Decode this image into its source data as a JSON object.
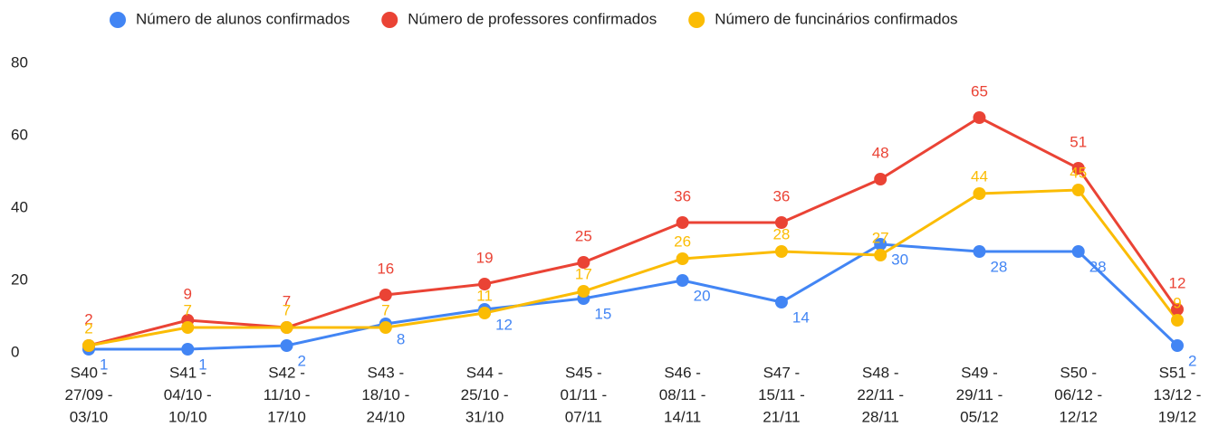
{
  "chart_data": {
    "type": "line",
    "categories": [
      [
        "S40 -",
        "27/09 -",
        "03/10"
      ],
      [
        "S41 -",
        "04/10 -",
        "10/10"
      ],
      [
        "S42 -",
        "11/10 -",
        "17/10"
      ],
      [
        "S43 -",
        "18/10 -",
        "24/10"
      ],
      [
        "S44 -",
        "25/10 -",
        "31/10"
      ],
      [
        "S45 -",
        "01/11 -",
        "07/11"
      ],
      [
        "S46 -",
        "08/11 -",
        "14/11"
      ],
      [
        "S47 -",
        "15/11 -",
        "21/11"
      ],
      [
        "S48 -",
        "22/11 -",
        "28/11"
      ],
      [
        "S49 -",
        "29/11 -",
        "05/12"
      ],
      [
        "S50 -",
        "06/12 -",
        "12/12"
      ],
      [
        "S51 -",
        "13/12 -",
        "19/12"
      ]
    ],
    "series": [
      {
        "name": "Número de alunos confirmados",
        "color": "#4285f4",
        "values": [
          1,
          1,
          2,
          8,
          12,
          15,
          20,
          14,
          30,
          28,
          28,
          2
        ]
      },
      {
        "name": "Número de professores confirmados",
        "color": "#ea4335",
        "values": [
          2,
          9,
          7,
          16,
          19,
          25,
          36,
          36,
          48,
          65,
          51,
          12
        ]
      },
      {
        "name": "Número de funcinários confirmados",
        "color": "#fbbc04",
        "values": [
          2,
          7,
          7,
          7,
          11,
          17,
          26,
          28,
          27,
          44,
          45,
          9
        ]
      }
    ],
    "ylim": [
      0,
      80
    ],
    "yticks": [
      0,
      20,
      40,
      60,
      80
    ],
    "legend": "top",
    "grid": false
  }
}
